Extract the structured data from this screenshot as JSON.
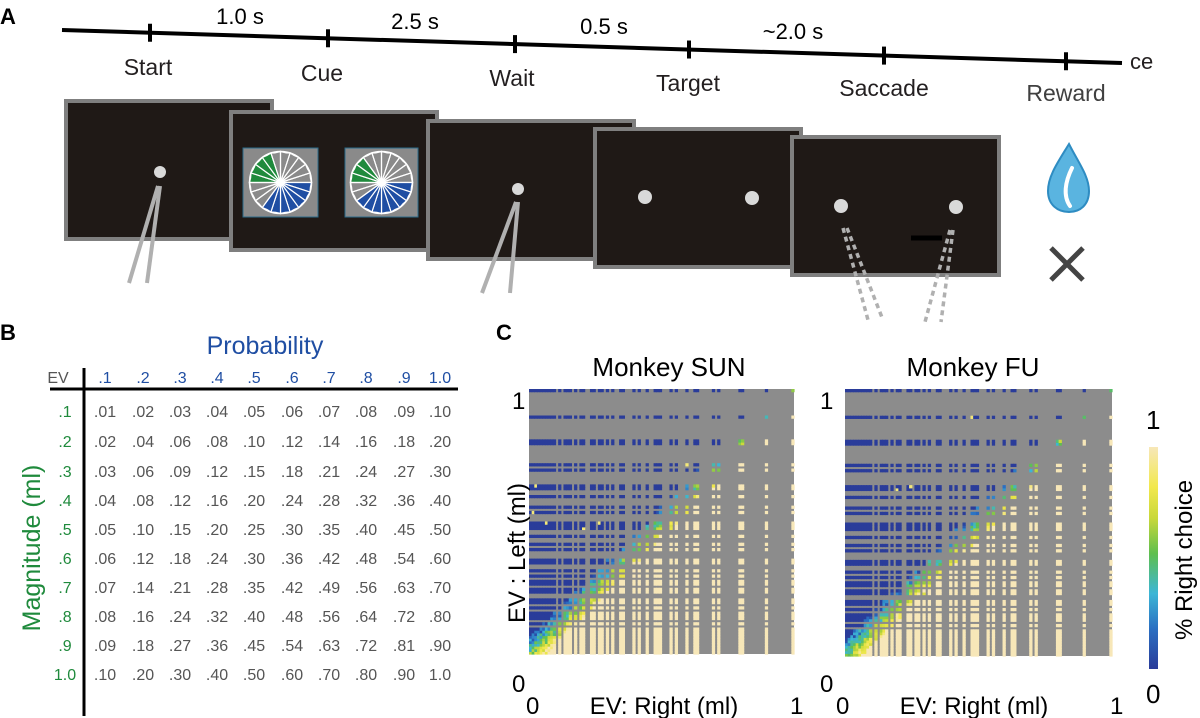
{
  "panel_a": {
    "letter": "A",
    "durations": [
      "1.0 s",
      "2.5 s",
      "0.5 s",
      "~2.0 s"
    ],
    "events": [
      "Start",
      "Cue",
      "Wait",
      "Target",
      "Saccade",
      "Reward"
    ],
    "axis_end_label": "ce",
    "colors": {
      "screen": "#1f1916",
      "screen_border": "#7f7f7f",
      "green": "#1f8a3c",
      "blue": "#1f4ea3",
      "water": "#5ab4e0",
      "cross": "#444444"
    }
  },
  "panel_b": {
    "letter": "B",
    "probability_title": "Probability",
    "magnitude_title": "Magnitude (ml)",
    "ev_header": "EV",
    "prob_labels": [
      ".1",
      ".2",
      ".3",
      ".4",
      ".5",
      ".6",
      ".7",
      ".8",
      ".9",
      "1.0"
    ],
    "mag_labels": [
      ".1",
      ".2",
      ".3",
      ".4",
      ".5",
      ".6",
      ".7",
      ".8",
      ".9",
      "1.0"
    ],
    "rows": [
      [
        ".01",
        ".02",
        ".03",
        ".04",
        ".05",
        ".06",
        ".07",
        ".08",
        ".09",
        ".10"
      ],
      [
        ".02",
        ".04",
        ".06",
        ".08",
        ".10",
        ".12",
        ".14",
        ".16",
        ".18",
        ".20"
      ],
      [
        ".03",
        ".06",
        ".09",
        ".12",
        ".15",
        ".18",
        ".21",
        ".24",
        ".27",
        ".30"
      ],
      [
        ".04",
        ".08",
        ".12",
        ".16",
        ".20",
        ".24",
        ".28",
        ".32",
        ".36",
        ".40"
      ],
      [
        ".05",
        ".10",
        ".15",
        ".20",
        ".25",
        ".30",
        ".35",
        ".40",
        ".45",
        ".50"
      ],
      [
        ".06",
        ".12",
        ".18",
        ".24",
        ".30",
        ".36",
        ".42",
        ".48",
        ".54",
        ".60"
      ],
      [
        ".07",
        ".14",
        ".21",
        ".28",
        ".35",
        ".42",
        ".49",
        ".56",
        ".63",
        ".70"
      ],
      [
        ".08",
        ".16",
        ".24",
        ".32",
        ".40",
        ".48",
        ".56",
        ".64",
        ".72",
        ".80"
      ],
      [
        ".09",
        ".18",
        ".27",
        ".36",
        ".45",
        ".54",
        ".63",
        ".72",
        ".81",
        ".90"
      ],
      [
        ".10",
        ".20",
        ".30",
        ".40",
        ".50",
        ".60",
        ".70",
        ".80",
        ".90",
        "1.0"
      ]
    ],
    "colors": {
      "probability": "#1f4ea3",
      "magnitude": "#1f8a3c",
      "values": "#555555"
    }
  },
  "panel_c": {
    "letter": "C",
    "titles": [
      "Monkey SUN",
      "Monkey FU"
    ],
    "ylabel": "EV : Left (ml)",
    "xlabel": "EV: Right (ml)",
    "tick_min": "0",
    "tick_max": "1",
    "colorbar_label": "% Right choice",
    "colorbar_min": "0",
    "colorbar_max": "1",
    "colormap": [
      "#2a3c9a",
      "#2b6fc2",
      "#3cb6d6",
      "#5fbf4f",
      "#c9d83a",
      "#f2e84d",
      "#f7e7b8"
    ],
    "missing_color": "#8c8c8c"
  }
}
